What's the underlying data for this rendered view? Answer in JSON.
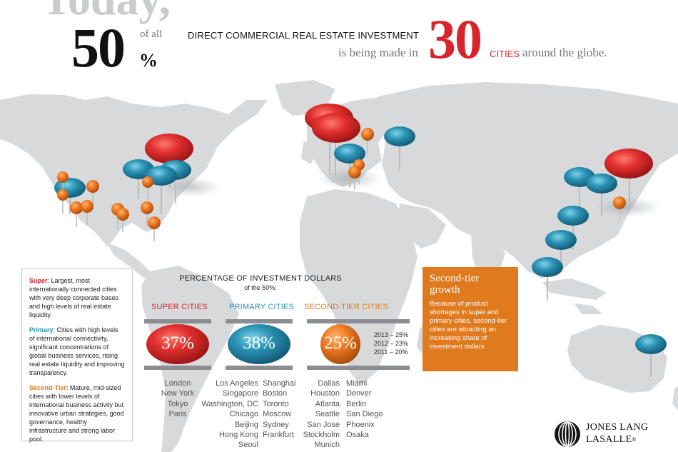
{
  "headline": {
    "today": "Today,",
    "fifty": "50",
    "percent_sign": "%",
    "of_all": "of all",
    "investment_type": "DIRECT COMMERCIAL REAL ESTATE INVESTMENT",
    "being_made": "is being made in",
    "thirty": "30",
    "cities_word": "CITIES",
    "around_globe": "around the globe."
  },
  "colors": {
    "super": "#d6262b",
    "primary": "#2a93b0",
    "second_tier": "#e07a1f",
    "map_land": "#d7d9db"
  },
  "legend": {
    "super_label": "Super",
    "super_text": ": Largest, most internationally connected cities with very deep corporate bases and high levels of real estate liquidity.",
    "primary_label": "Primary",
    "primary_text": ": Cities with high levels of international connectivity, significant concentrations of global business services, rising real estate liquidity and improving transparency.",
    "second_label": "Second-Tier",
    "second_text": ": Mature, mid-sized cities with lower levels of international business activity but innovative urban strategies, good governance, healthy infrastructure and strong labor pool."
  },
  "percentages": {
    "heading": "PERCENTAGE OF INVESTMENT DOLLARS",
    "subheading": "of the 50%:",
    "super_title": "SUPER CITIES",
    "super_value": "37%",
    "primary_title": "PRIMARY CITIES",
    "primary_value": "38%",
    "second_title": "SECOND-TIER CITIES",
    "second_value": "25%",
    "trend": [
      "2013 – 25%",
      "2012 – 23%",
      "2011 – 20%"
    ]
  },
  "city_lists": {
    "super": [
      "London",
      "New York",
      "Tokyo",
      "Paris"
    ],
    "primary_a": [
      "Los Angeles",
      "Singapore",
      "Washington, DC",
      "Chicago",
      "Beijing",
      "Hong Kong",
      "Seoul"
    ],
    "primary_b": [
      "Shanghai",
      "Boston",
      "Toronto",
      "Moscow",
      "Sydney",
      "Frankfurt"
    ],
    "second_a": [
      "Dallas",
      "Houston",
      "Atlanta",
      "Seattle",
      "San Jose",
      "Stockholm",
      "Munich"
    ],
    "second_b": [
      "Miami",
      "Denver",
      "Berlin",
      "San Diego",
      "Phoenix",
      "Osaka"
    ]
  },
  "growth_box": {
    "title": "Second-tier growth",
    "body": "Because of product shortages in super and primary cities, second-tier cities are attracting an increasing share of investment dollars."
  },
  "logo": {
    "line1": "JONES LANG",
    "line2": "LASALLE",
    "mark": "®",
    "icon": "jll-logo-icon"
  }
}
